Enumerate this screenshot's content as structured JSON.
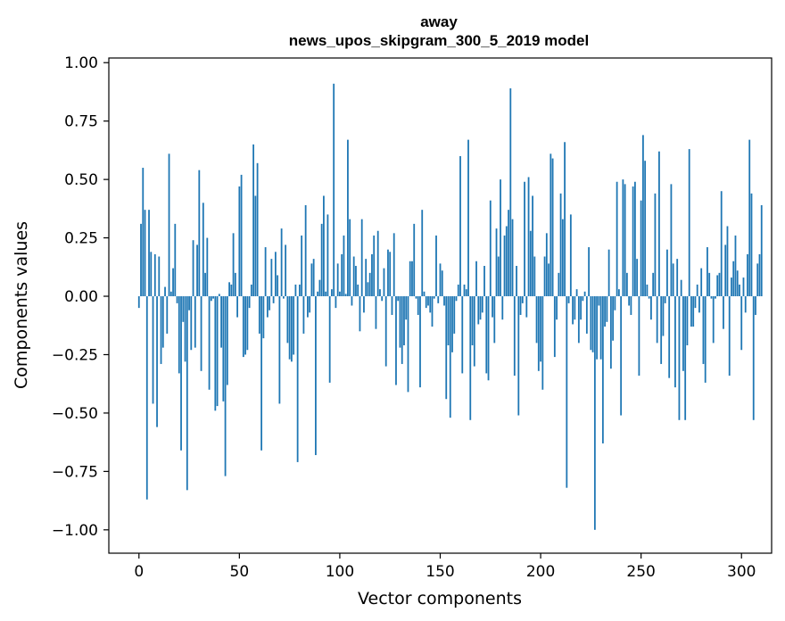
{
  "chart_data": {
    "type": "bar",
    "title": "away",
    "subtitle": "news_upos_skipgram_300_5_2019 model",
    "xlabel": "Vector components",
    "ylabel": "Components values",
    "xlim": [
      -15,
      315
    ],
    "ylim": [
      -1.1,
      1.02
    ],
    "xticks": [
      0,
      50,
      100,
      150,
      200,
      250,
      300
    ],
    "xtick_labels": [
      "0",
      "50",
      "100",
      "150",
      "200",
      "250",
      "300"
    ],
    "yticks": [
      -1.0,
      -0.75,
      -0.5,
      -0.25,
      0.0,
      0.25,
      0.5,
      0.75,
      1.0
    ],
    "ytick_labels": [
      "−1.00",
      "−0.75",
      "−0.50",
      "−0.25",
      "0.00",
      "0.25",
      "0.50",
      "0.75",
      "1.00"
    ],
    "bar_color": "#1f77b4",
    "grid": false,
    "series": [
      {
        "name": "away",
        "values": [
          -0.05,
          0.31,
          0.55,
          0.37,
          -0.87,
          0.37,
          0.19,
          -0.46,
          0.18,
          -0.56,
          0.17,
          -0.29,
          -0.22,
          0.04,
          -0.16,
          0.61,
          0.02,
          0.12,
          0.31,
          -0.03,
          -0.33,
          -0.66,
          -0.11,
          -0.28,
          -0.83,
          -0.06,
          -0.23,
          0.24,
          -0.22,
          0.22,
          0.54,
          -0.32,
          0.4,
          0.1,
          0.25,
          -0.4,
          -0.02,
          -0.01,
          -0.49,
          -0.47,
          0.01,
          -0.22,
          -0.45,
          -0.77,
          -0.38,
          0.06,
          0.05,
          0.27,
          0.1,
          -0.09,
          0.47,
          0.52,
          -0.26,
          -0.25,
          -0.23,
          -0.05,
          0.05,
          0.65,
          0.43,
          0.57,
          -0.16,
          -0.66,
          -0.18,
          0.21,
          -0.09,
          -0.06,
          0.16,
          -0.03,
          0.19,
          0.09,
          -0.46,
          0.29,
          -0.01,
          0.22,
          -0.2,
          -0.27,
          -0.28,
          -0.25,
          0.05,
          -0.71,
          0.05,
          0.26,
          -0.16,
          0.39,
          -0.09,
          -0.07,
          0.14,
          0.16,
          -0.68,
          0.02,
          0.07,
          0.31,
          0.43,
          0.02,
          0.35,
          -0.37,
          0.03,
          0.91,
          -0.05,
          0.14,
          0.02,
          0.18,
          0.26,
          0.01,
          0.67,
          0.33,
          -0.04,
          0.17,
          0.13,
          0.05,
          -0.15,
          0.33,
          -0.07,
          0.16,
          0.06,
          0.1,
          0.18,
          0.26,
          -0.14,
          0.28,
          0.03,
          -0.02,
          0.12,
          -0.3,
          0.2,
          0.19,
          -0.08,
          0.27,
          -0.38,
          -0.02,
          -0.22,
          -0.29,
          -0.21,
          -0.1,
          -0.41,
          0.15,
          0.15,
          0.31,
          -0.01,
          -0.08,
          -0.39,
          0.37,
          0.02,
          -0.05,
          -0.04,
          -0.07,
          -0.13,
          -0.01,
          0.26,
          -0.03,
          0.14,
          0.11,
          -0.04,
          -0.44,
          -0.21,
          -0.52,
          -0.24,
          -0.16,
          -0.02,
          0.05,
          0.6,
          -0.33,
          0.05,
          0.03,
          0.67,
          -0.53,
          -0.21,
          -0.3,
          0.15,
          -0.12,
          -0.1,
          -0.07,
          0.13,
          -0.33,
          -0.36,
          0.41,
          -0.09,
          -0.2,
          0.29,
          0.17,
          0.5,
          -0.1,
          0.26,
          0.3,
          0.37,
          0.89,
          0.33,
          -0.34,
          0.13,
          -0.51,
          -0.08,
          -0.03,
          0.49,
          -0.09,
          0.51,
          0.28,
          0.43,
          0.17,
          -0.2,
          -0.32,
          -0.28,
          -0.4,
          0.17,
          0.27,
          0.14,
          0.61,
          0.59,
          -0.26,
          -0.1,
          0.1,
          0.44,
          0.33,
          0.66,
          -0.82,
          -0.03,
          0.35,
          -0.12,
          -0.1,
          0.03,
          -0.2,
          -0.1,
          -0.02,
          0.02,
          -0.16,
          0.21,
          -0.23,
          -0.24,
          -1.0,
          -0.27,
          -0.04,
          -0.27,
          -0.63,
          -0.13,
          -0.11,
          0.2,
          -0.31,
          -0.19,
          -0.06,
          0.49,
          0.03,
          -0.51,
          0.5,
          0.48,
          0.1,
          -0.04,
          -0.08,
          0.47,
          0.49,
          0.16,
          -0.34,
          0.41,
          0.69,
          0.58,
          0.05,
          -0.01,
          -0.1,
          0.1,
          0.44,
          -0.2,
          0.62,
          -0.29,
          -0.17,
          -0.03,
          0.2,
          -0.35,
          0.48,
          0.14,
          -0.39,
          0.16,
          -0.53,
          0.07,
          -0.32,
          -0.53,
          -0.21,
          0.63,
          -0.13,
          -0.13,
          -0.05,
          0.05,
          -0.07,
          0.12,
          -0.29,
          -0.37,
          0.21,
          0.1,
          -0.01,
          -0.2,
          -0.01,
          0.09,
          0.1,
          0.45,
          -0.14,
          0.22,
          0.3,
          -0.34,
          0.08,
          0.15,
          0.26,
          0.11,
          0.05,
          -0.23,
          0.08,
          -0.07,
          0.18,
          0.67,
          0.44,
          -0.53,
          -0.08,
          0.14,
          0.18,
          0.39
        ]
      }
    ]
  }
}
